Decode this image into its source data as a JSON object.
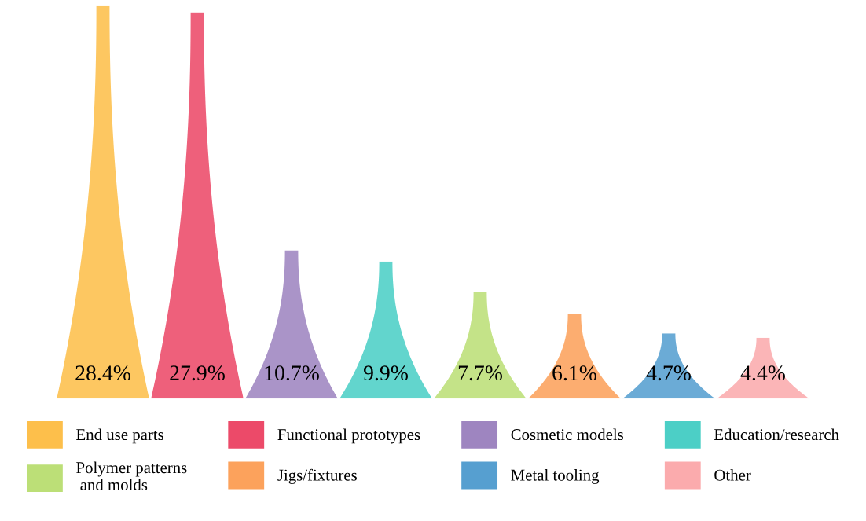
{
  "chart_data": {
    "type": "bar",
    "categories": [
      null,
      null,
      null,
      null,
      null,
      null,
      null,
      null
    ],
    "series": [
      {
        "name": "End use parts",
        "color": "#fdbf4b",
        "values": [
          28.4,
          null,
          null,
          null,
          null,
          null,
          null,
          null
        ],
        "value_labels": [
          "28.4%",
          null,
          null,
          null,
          null,
          null,
          null,
          null
        ]
      },
      {
        "name": "Functional prototypes",
        "color": "#ec4a69",
        "values": [
          null,
          27.9,
          null,
          null,
          null,
          null,
          null,
          null
        ],
        "value_labels": [
          null,
          "27.9%",
          null,
          null,
          null,
          null,
          null,
          null
        ]
      },
      {
        "name": "Cosmetic models",
        "color": "#9e85c0",
        "values": [
          null,
          null,
          10.7,
          null,
          null,
          null,
          null,
          null
        ],
        "value_labels": [
          null,
          null,
          "10.7%",
          null,
          null,
          null,
          null,
          null
        ]
      },
      {
        "name": "Education/research",
        "color": "#4ccfc6",
        "values": [
          null,
          null,
          null,
          9.9,
          null,
          null,
          null,
          null
        ],
        "value_labels": [
          null,
          null,
          null,
          "9.9%",
          null,
          null,
          null,
          null
        ]
      },
      {
        "name": "Polymer patterns\n and molds",
        "color": "#bcdf77",
        "values": [
          null,
          null,
          null,
          null,
          7.7,
          null,
          null,
          null
        ],
        "value_labels": [
          null,
          null,
          null,
          null,
          "7.7%",
          null,
          null,
          null
        ]
      },
      {
        "name": "Jigs/fixtures",
        "color": "#fca25c",
        "values": [
          null,
          null,
          null,
          null,
          null,
          6.1,
          null,
          null
        ],
        "value_labels": [
          null,
          null,
          null,
          null,
          null,
          "6.1%",
          null,
          null
        ]
      },
      {
        "name": "Metal tooling",
        "color": "#569fd0",
        "values": [
          null,
          null,
          null,
          null,
          null,
          null,
          4.7,
          null
        ],
        "value_labels": [
          null,
          null,
          null,
          null,
          null,
          null,
          "4.7%",
          null
        ]
      },
      {
        "name": "Other",
        "color": "#fbabad",
        "values": [
          null,
          null,
          null,
          null,
          null,
          null,
          null,
          4.4
        ],
        "value_labels": [
          null,
          null,
          null,
          null,
          null,
          null,
          null,
          "4.4%"
        ]
      }
    ],
    "stacked": true,
    "legend": "bottom"
  }
}
